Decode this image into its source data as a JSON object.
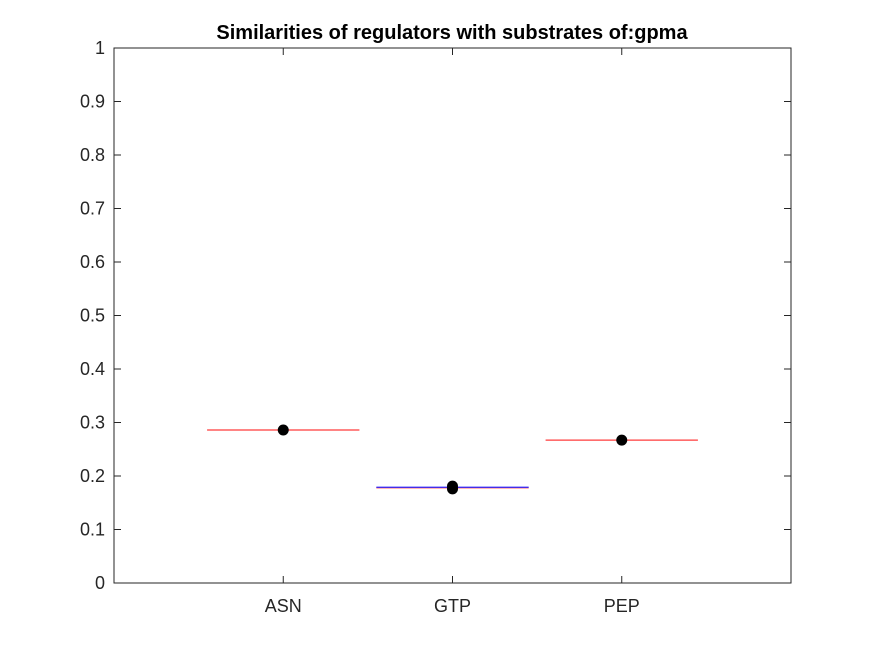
{
  "chart_data": {
    "type": "scatter",
    "title": "Similarities of regulators with substrates of:gpma",
    "xlabel": "",
    "ylabel": "",
    "categories": [
      "ASN",
      "GTP",
      "PEP"
    ],
    "ylim": [
      0,
      1
    ],
    "yticks": [
      "0",
      "0.1",
      "0.2",
      "0.3",
      "0.4",
      "0.5",
      "0.6",
      "0.7",
      "0.8",
      "0.9",
      "1"
    ],
    "grid": false,
    "box": true,
    "median_lines": [
      {
        "category": "ASN",
        "value": 0.286,
        "color": "#ff3b3b"
      },
      {
        "category": "GTP",
        "value": 0.178,
        "color": "#ff3b3b"
      },
      {
        "category": "GTP",
        "value": 0.179,
        "color": "#2b2bff"
      },
      {
        "category": "PEP",
        "value": 0.267,
        "color": "#ff3b3b"
      }
    ],
    "points": [
      {
        "category": "ASN",
        "value": 0.286
      },
      {
        "category": "GTP",
        "value": 0.176
      },
      {
        "category": "GTP",
        "value": 0.181
      },
      {
        "category": "PEP",
        "value": 0.267
      }
    ],
    "point_color": "#000000"
  }
}
